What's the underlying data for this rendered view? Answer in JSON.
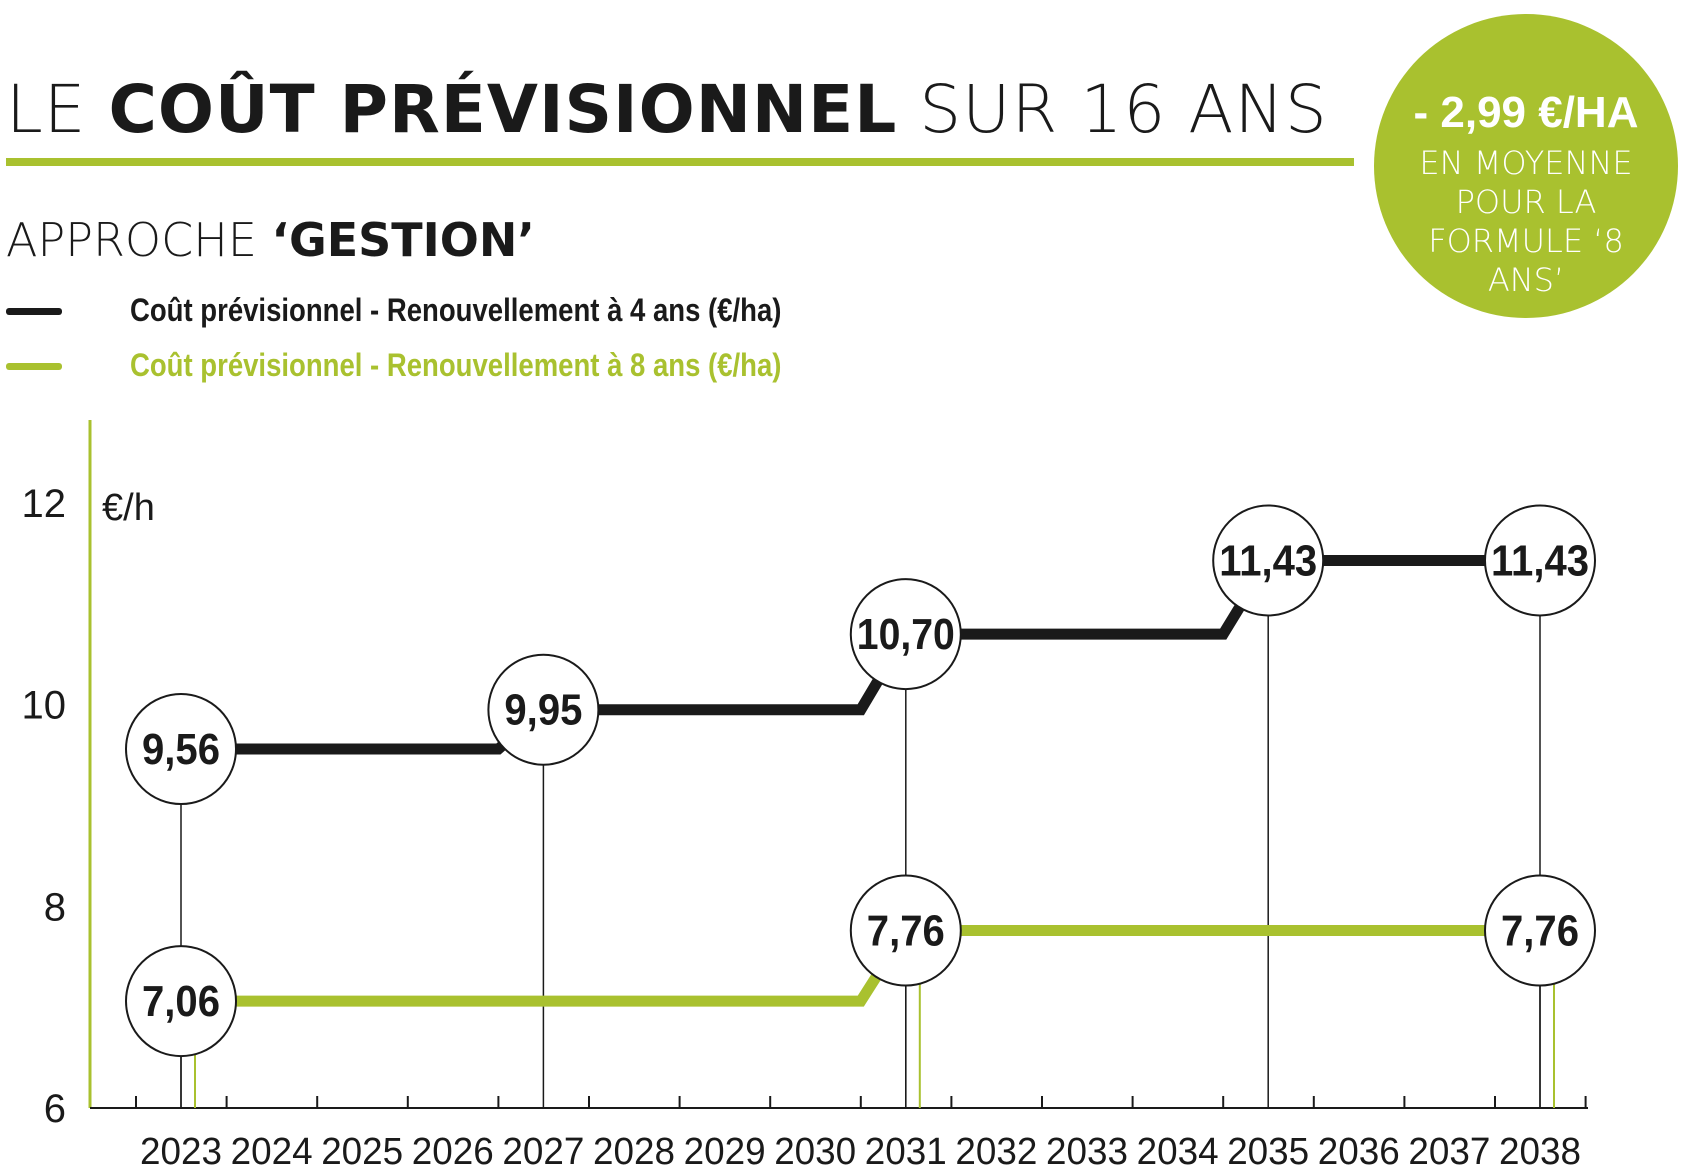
{
  "header": {
    "title_pre": "LE ",
    "title_bold": "COÛT PRÉVISIONNEL",
    "title_post": " SUR 16 ANS",
    "subtitle_pre": "APPROCHE ",
    "subtitle_bold": "‘GESTION’"
  },
  "badge": {
    "amount": "- 2,99 €/HA",
    "text": "EN MOYENNE POUR LA FORMULE ‘8 ANS’",
    "color": "#a9c12f"
  },
  "legend": [
    {
      "label": "Coût prévisionnel - Renouvellement à 4  ans (€/ha)",
      "color": "#1a1a1a"
    },
    {
      "label": "Coût prévisionnel - Renouvellement à 8 ans (€/ha)",
      "color": "#a9c12f"
    }
  ],
  "colors": {
    "accent": "#a9c12f",
    "dark": "#1a1a1a"
  },
  "chart_data": {
    "type": "line",
    "ylabel": "€/h",
    "ylim": [
      6,
      12
    ],
    "yticks": [
      "6",
      "8",
      "10",
      "12"
    ],
    "categories": [
      "2023",
      "2024",
      "2025",
      "2026",
      "2027",
      "2028",
      "2029",
      "2030",
      "2031",
      "2032",
      "2033",
      "2034",
      "2035",
      "2036",
      "2037",
      "2038"
    ],
    "series": [
      {
        "name": "Coût prévisionnel - Renouvellement à 4  ans (€/ha)",
        "color": "#1a1a1a",
        "values": [
          9.56,
          9.56,
          9.56,
          9.56,
          9.95,
          9.95,
          9.95,
          9.95,
          10.7,
          10.7,
          10.7,
          10.7,
          11.43,
          11.43,
          11.43,
          11.43
        ],
        "labels": [
          {
            "category": "2023",
            "text": "9,56"
          },
          {
            "category": "2027",
            "text": "9,95"
          },
          {
            "category": "2031",
            "text": "10,70"
          },
          {
            "category": "2035",
            "text": "11,43"
          },
          {
            "category": "2038",
            "text": "11,43"
          }
        ]
      },
      {
        "name": "Coût prévisionnel - Renouvellement à 8 ans (€/ha)",
        "color": "#a9c12f",
        "values": [
          7.06,
          7.06,
          7.06,
          7.06,
          7.06,
          7.06,
          7.06,
          7.06,
          7.76,
          7.76,
          7.76,
          7.76,
          7.76,
          7.76,
          7.76,
          7.76
        ],
        "labels": [
          {
            "category": "2023",
            "text": "7,06"
          },
          {
            "category": "2031",
            "text": "7,76"
          },
          {
            "category": "2038",
            "text": "7,76"
          }
        ]
      }
    ]
  }
}
